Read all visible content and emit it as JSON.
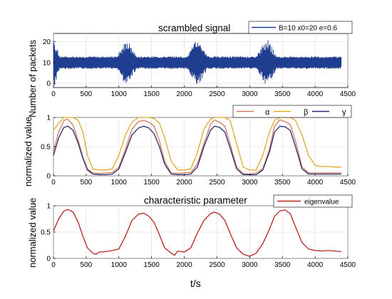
{
  "figure": {
    "ylabel_top": "Number of packets",
    "ylabel_mid": "normalized value",
    "ylabel_bottom": "normalized value",
    "xlabel": "t/s"
  },
  "chart_data": [
    {
      "type": "line",
      "title": "scrambled signal",
      "legend": [
        "B=10 x0=20 e=0.6"
      ],
      "legend_position": "top-right",
      "ylabel": "Number of packets",
      "xlim": [
        0,
        4500
      ],
      "ylim": [
        -2,
        24
      ],
      "xticks": [
        0,
        500,
        1000,
        1500,
        2000,
        2500,
        3000,
        3500,
        4000,
        4500
      ],
      "yticks": [
        0,
        10,
        20
      ],
      "baseline": 10,
      "bursts": [
        {
          "center": 0,
          "halfwidth": 120,
          "amplitude": 13
        },
        {
          "center": 1120,
          "halfwidth": 200,
          "amplitude": 12
        },
        {
          "center": 2200,
          "halfwidth": 210,
          "amplitude": 12
        },
        {
          "center": 3260,
          "halfwidth": 210,
          "amplitude": 12
        }
      ],
      "series": [
        {
          "name": "B=10 x0=20 e=0.6",
          "color": "#1f3e8f"
        }
      ],
      "grid": true
    },
    {
      "type": "line",
      "ylabel": "normalized value",
      "legend_position": "top-right",
      "xlim": [
        0,
        4500
      ],
      "ylim": [
        0,
        1
      ],
      "xticks": [
        0,
        500,
        1000,
        1500,
        2000,
        2500,
        3000,
        3500,
        4000,
        4500
      ],
      "yticks": [
        0,
        0.5,
        1
      ],
      "series": [
        {
          "name": "α",
          "color": "#d17a5a",
          "x": [
            0,
            80,
            160,
            220,
            300,
            380,
            450,
            520,
            600,
            700,
            800,
            900,
            1000,
            1100,
            1200,
            1300,
            1380,
            1460,
            1540,
            1620,
            1700,
            1800,
            1900,
            2000,
            2100,
            2200,
            2300,
            2400,
            2460,
            2540,
            2620,
            2700,
            2800,
            2900,
            3000,
            3100,
            3200,
            3300,
            3380,
            3460,
            3540,
            3620,
            3700,
            3800,
            3900,
            4000,
            4100,
            4200,
            4300,
            4400
          ],
          "y": [
            0.42,
            0.75,
            0.95,
            0.97,
            0.87,
            0.6,
            0.32,
            0.12,
            0.05,
            0.04,
            0.05,
            0.06,
            0.15,
            0.45,
            0.8,
            0.93,
            0.95,
            0.92,
            0.85,
            0.6,
            0.25,
            0.05,
            0.04,
            0.05,
            0.06,
            0.2,
            0.55,
            0.88,
            0.96,
            0.92,
            0.85,
            0.55,
            0.15,
            0.04,
            0.03,
            0.05,
            0.12,
            0.45,
            0.85,
            0.96,
            0.93,
            0.88,
            0.6,
            0.15,
            0.05,
            0.05,
            0.05,
            0.05,
            0.05,
            0.05
          ]
        },
        {
          "name": "β",
          "color": "#e0a92a",
          "x": [
            0,
            80,
            160,
            220,
            300,
            380,
            450,
            520,
            600,
            700,
            800,
            900,
            1000,
            1100,
            1200,
            1300,
            1380,
            1460,
            1540,
            1620,
            1700,
            1800,
            1900,
            2000,
            2100,
            2200,
            2300,
            2400,
            2460,
            2540,
            2620,
            2700,
            2800,
            2900,
            3000,
            3100,
            3200,
            3300,
            3380,
            3460,
            3540,
            3620,
            3700,
            3800,
            3900,
            4000,
            4100,
            4200,
            4300,
            4400
          ],
          "y": [
            0.78,
            0.9,
            1.0,
            1.0,
            1.0,
            0.95,
            0.75,
            0.35,
            0.12,
            0.1,
            0.1,
            0.12,
            0.35,
            0.7,
            0.92,
            1.0,
            1.0,
            1.0,
            0.98,
            0.9,
            0.65,
            0.25,
            0.1,
            0.1,
            0.12,
            0.4,
            0.8,
            0.97,
            1.0,
            1.0,
            1.0,
            0.95,
            0.55,
            0.15,
            0.1,
            0.1,
            0.35,
            0.75,
            0.95,
            1.0,
            1.0,
            1.0,
            0.95,
            0.7,
            0.35,
            0.18,
            0.16,
            0.16,
            0.15,
            0.15
          ]
        },
        {
          "name": "γ",
          "color": "#2a2a6e",
          "x": [
            0,
            80,
            160,
            220,
            300,
            380,
            450,
            520,
            600,
            700,
            800,
            900,
            1000,
            1100,
            1200,
            1300,
            1380,
            1460,
            1540,
            1620,
            1700,
            1800,
            1900,
            2000,
            2100,
            2200,
            2300,
            2400,
            2460,
            2540,
            2620,
            2700,
            2800,
            2900,
            3000,
            3100,
            3200,
            3300,
            3380,
            3460,
            3540,
            3620,
            3700,
            3800,
            3900,
            4000,
            4100,
            4200,
            4300,
            4400
          ],
          "y": [
            0.35,
            0.65,
            0.83,
            0.85,
            0.78,
            0.55,
            0.3,
            0.1,
            0.03,
            0.02,
            0.02,
            0.03,
            0.12,
            0.4,
            0.7,
            0.82,
            0.85,
            0.82,
            0.72,
            0.5,
            0.2,
            0.03,
            0.02,
            0.02,
            0.03,
            0.15,
            0.5,
            0.78,
            0.85,
            0.83,
            0.75,
            0.48,
            0.12,
            0.02,
            0.02,
            0.02,
            0.1,
            0.4,
            0.75,
            0.85,
            0.84,
            0.78,
            0.5,
            0.12,
            0.03,
            0.03,
            0.03,
            0.03,
            0.03,
            0.03
          ]
        }
      ],
      "grid": true
    },
    {
      "type": "line",
      "title": "characteristic parameter",
      "legend": [
        "eigenvalue"
      ],
      "legend_position": "top-right",
      "ylabel": "normalized value",
      "xlabel": "t/s",
      "xlim": [
        0,
        4500
      ],
      "ylim": [
        0,
        1
      ],
      "xticks": [
        0,
        500,
        1000,
        1500,
        2000,
        2500,
        3000,
        3500,
        4000,
        4500
      ],
      "yticks": [
        0,
        0.5,
        1
      ],
      "series": [
        {
          "name": "eigenvalue",
          "color": "#b5241e",
          "x": [
            0,
            80,
            160,
            220,
            300,
            380,
            450,
            520,
            600,
            650,
            700,
            800,
            900,
            1000,
            1100,
            1200,
            1300,
            1380,
            1460,
            1540,
            1620,
            1700,
            1800,
            1850,
            1900,
            2000,
            2100,
            2200,
            2300,
            2400,
            2460,
            2540,
            2620,
            2700,
            2800,
            2900,
            3000,
            3100,
            3200,
            3300,
            3380,
            3460,
            3540,
            3620,
            3700,
            3800,
            3900,
            4000,
            4100,
            4200,
            4300,
            4400
          ],
          "y": [
            0.52,
            0.75,
            0.9,
            0.93,
            0.88,
            0.68,
            0.42,
            0.2,
            0.1,
            0.08,
            0.12,
            0.13,
            0.15,
            0.18,
            0.42,
            0.72,
            0.84,
            0.86,
            0.8,
            0.68,
            0.45,
            0.2,
            0.1,
            0.06,
            0.14,
            0.12,
            0.2,
            0.48,
            0.72,
            0.85,
            0.88,
            0.84,
            0.72,
            0.48,
            0.2,
            0.08,
            0.04,
            0.1,
            0.28,
            0.55,
            0.8,
            0.9,
            0.92,
            0.85,
            0.6,
            0.3,
            0.18,
            0.15,
            0.14,
            0.15,
            0.14,
            0.13
          ]
        }
      ],
      "grid": true
    }
  ]
}
